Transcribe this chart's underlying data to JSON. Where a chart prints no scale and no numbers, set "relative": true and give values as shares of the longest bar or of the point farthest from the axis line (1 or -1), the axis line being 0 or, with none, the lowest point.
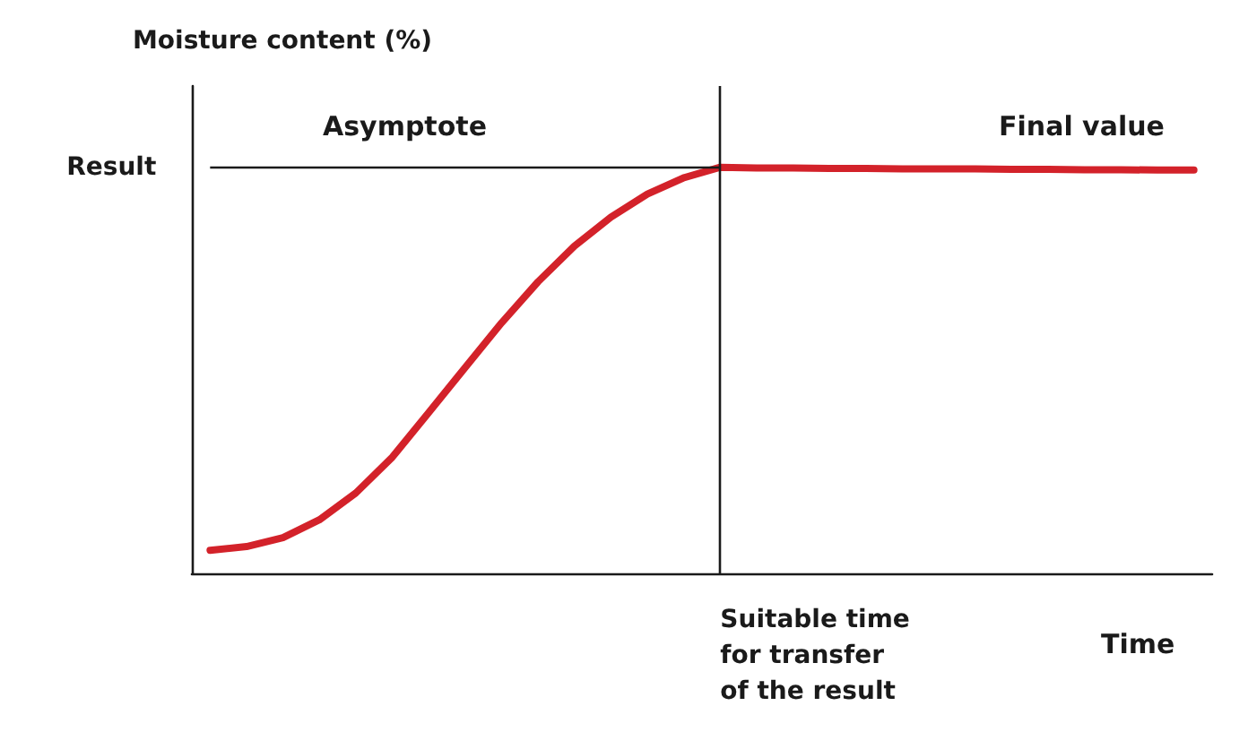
{
  "chart_data": {
    "type": "line",
    "relative": true,
    "ylabel": "Moisture content (%)",
    "xlabel": "Time",
    "annotations": [
      "Asymptote",
      "Final value",
      "Suitable time\nfor transfer\nof the result"
    ],
    "categories": [
      null,
      null,
      null,
      null,
      null,
      null,
      null,
      null,
      null,
      null,
      null,
      null,
      null,
      null,
      null,
      null,
      null,
      null,
      null,
      null,
      null,
      null,
      null,
      null,
      null,
      null,
      null,
      null
    ],
    "series": [
      {
        "color": "#d3222a",
        "values": [
          0.057,
          0.066,
          0.088,
          0.132,
          0.198,
          0.286,
          0.396,
          0.507,
          0.617,
          0.718,
          0.806,
          0.877,
          0.934,
          0.974,
          1.0,
          0.998,
          0.998,
          0.997,
          0.997,
          0.996,
          0.996,
          0.996,
          0.995,
          0.995,
          0.994,
          0.994,
          0.993,
          0.993
        ]
      }
    ],
    "ref_lines": [
      {
        "axis": "y",
        "value": 1.0,
        "label": "Result",
        "color": "#1a1a1a"
      }
    ],
    "marker": "none",
    "line_style": "solid",
    "grid": false
  }
}
